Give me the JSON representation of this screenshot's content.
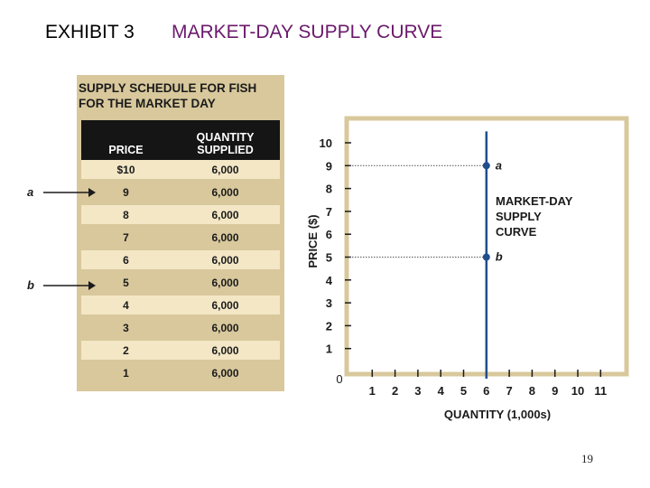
{
  "header": {
    "exhibit": "EXHIBIT 3",
    "title": "MARKET-DAY SUPPLY CURVE"
  },
  "schedule": {
    "title_line1": "SUPPLY SCHEDULE FOR FISH",
    "title_line2": "FOR THE MARKET DAY",
    "col_price": "PRICE",
    "col_qty_line1": "QUANTITY",
    "col_qty_line2": "SUPPLIED",
    "rows": [
      {
        "price": "$10",
        "qty": "6,000"
      },
      {
        "price": "9",
        "qty": "6,000"
      },
      {
        "price": "8",
        "qty": "6,000"
      },
      {
        "price": "7",
        "qty": "6,000"
      },
      {
        "price": "6",
        "qty": "6,000"
      },
      {
        "price": "5",
        "qty": "6,000"
      },
      {
        "price": "4",
        "qty": "6,000"
      },
      {
        "price": "3",
        "qty": "6,000"
      },
      {
        "price": "2",
        "qty": "6,000"
      },
      {
        "price": "1",
        "qty": "6,000"
      }
    ],
    "pointer_a": "a",
    "pointer_b": "b"
  },
  "chart_data": {
    "type": "line",
    "xlabel": "QUANTITY (1,000s)",
    "ylabel": "PRICE ($)",
    "xlim": [
      0,
      11
    ],
    "ylim": [
      0,
      10
    ],
    "x_ticks": [
      1,
      2,
      3,
      4,
      5,
      6,
      7,
      8,
      9,
      10,
      11
    ],
    "y_ticks": [
      1,
      2,
      3,
      4,
      5,
      6,
      7,
      8,
      9,
      10
    ],
    "origin_label": "0",
    "series": [
      {
        "name": "MARKET-DAY SUPPLY CURVE",
        "x": [
          6,
          6
        ],
        "y": [
          0,
          10.5
        ]
      }
    ],
    "curve_label_lines": [
      "MARKET-DAY",
      "SUPPLY",
      "CURVE"
    ],
    "points": [
      {
        "label": "a",
        "x": 6,
        "y": 9
      },
      {
        "label": "b",
        "x": 6,
        "y": 5
      }
    ],
    "grid": false,
    "colors": {
      "line": "#1f4e8c",
      "frame": "#d8c89c",
      "text": "#1b1b1b"
    }
  },
  "page_number": "19"
}
